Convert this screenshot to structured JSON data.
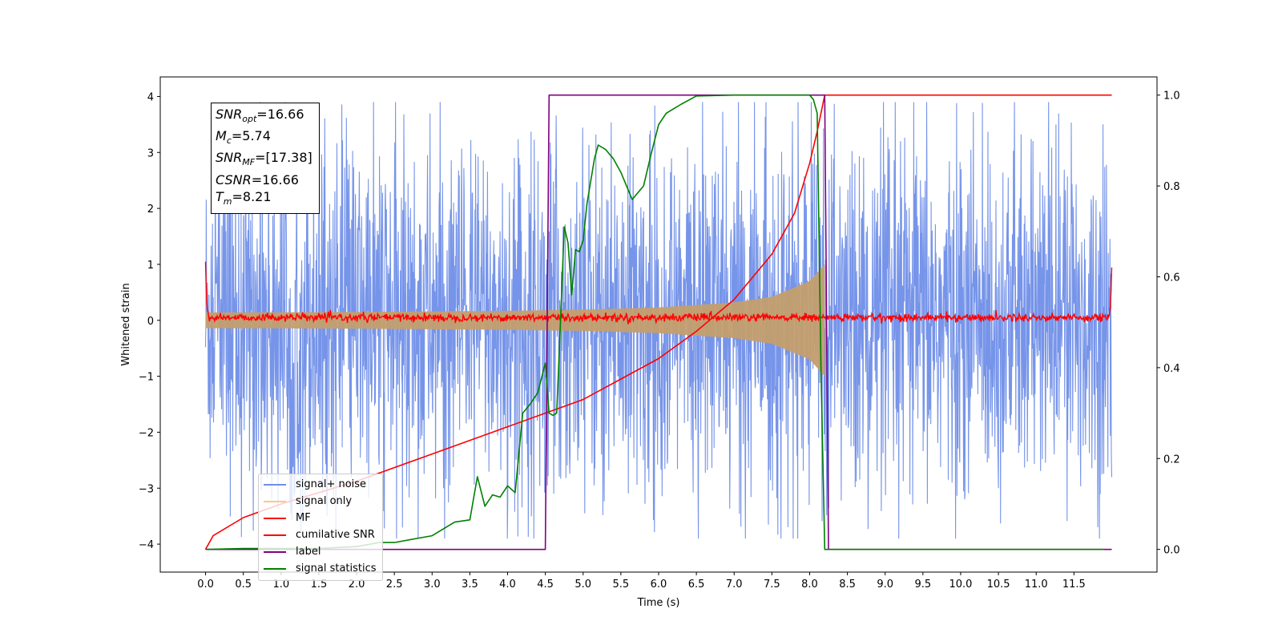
{
  "info_box": {
    "lines": [
      {
        "symbol": "SNR",
        "sub": "opt",
        "value": "=16.66"
      },
      {
        "symbol": "M",
        "sub": "c",
        "value": "=5.74"
      },
      {
        "symbol": "SNR",
        "sub": "MF",
        "value": "=[17.38]"
      },
      {
        "symbol": "CSNR",
        "sub": "",
        "value": "=16.66"
      },
      {
        "symbol": "T",
        "sub": "m",
        "value": "=8.21"
      }
    ]
  },
  "chart_data": {
    "type": "line",
    "xlabel": "Time (s)",
    "ylabel": "Whitened strain",
    "xlim": [
      -0.6,
      12.6
    ],
    "ylim": [
      -4.5,
      4.35
    ],
    "y2lim": [
      -0.05,
      1.04
    ],
    "x_ticks": [
      "0.0",
      "0.5",
      "1.0",
      "1.5",
      "2.0",
      "2.5",
      "3.0",
      "3.5",
      "4.0",
      "4.5",
      "5.0",
      "5.5",
      "6.0",
      "6.5",
      "7.0",
      "7.5",
      "8.0",
      "8.5",
      "9.0",
      "9.5",
      "10.0",
      "10.5",
      "11.0",
      "11.5"
    ],
    "y_ticks": [
      "4",
      "3",
      "2",
      "1",
      "0",
      "−1",
      "−2",
      "−3",
      "−4"
    ],
    "y2_ticks": [
      "1.0",
      "0.8",
      "0.6",
      "0.4",
      "0.2",
      "0.0"
    ],
    "legend": {
      "location": "lower-left",
      "entries": [
        {
          "label": "signal+ noise",
          "color": "#6f8ee8"
        },
        {
          "label": "signal only",
          "color": "#ffc87a"
        },
        {
          "label": "MF",
          "color": "#ff0000"
        },
        {
          "label": "cumilative SNR",
          "color": "#ff0000"
        },
        {
          "label": "label",
          "color": "#800080"
        },
        {
          "label": "signal statistics",
          "color": "#008000"
        }
      ]
    },
    "series": [
      {
        "name": "signal+ noise",
        "color": "#6f8ee8",
        "axis": "left",
        "description_points": "noise band roughly ±2.5 with spikes to ±3.5 across 0–12 s",
        "x_range": [
          0.0,
          12.0
        ],
        "typical_amplitude": 2.5,
        "peak_amplitude": 3.9
      },
      {
        "name": "signal only",
        "color": "#ffc87a",
        "axis": "left",
        "envelope": {
          "x": [
            0.0,
            2.0,
            4.0,
            5.0,
            6.0,
            7.0,
            7.5,
            8.0,
            8.2
          ],
          "amp": [
            0.14,
            0.15,
            0.17,
            0.19,
            0.23,
            0.32,
            0.42,
            0.7,
            1.0
          ]
        }
      },
      {
        "name": "MF",
        "color": "#ff0000",
        "axis": "left",
        "x_range": [
          0.0,
          12.0
        ],
        "baseline": 0.05,
        "edge_values": {
          "start": 1.0,
          "end": 0.95
        }
      },
      {
        "name": "cumilative SNR",
        "color": "#ff0000",
        "axis": "right",
        "x": [
          0.0,
          0.1,
          0.5,
          1.0,
          2.0,
          3.0,
          4.0,
          5.0,
          6.0,
          6.5,
          7.0,
          7.5,
          7.8,
          8.0,
          8.1,
          8.2,
          12.0
        ],
        "y": [
          0.0,
          0.03,
          0.07,
          0.1,
          0.15,
          0.21,
          0.27,
          0.33,
          0.42,
          0.48,
          0.55,
          0.65,
          0.74,
          0.85,
          0.92,
          1.0,
          1.0
        ]
      },
      {
        "name": "label",
        "color": "#800080",
        "axis": "right",
        "x": [
          0.0,
          4.5,
          4.55,
          8.2,
          8.25,
          12.0
        ],
        "y": [
          0.0,
          0.0,
          1.0,
          1.0,
          0.0,
          0.0
        ]
      },
      {
        "name": "signal statistics",
        "color": "#008000",
        "axis": "right",
        "x": [
          0.0,
          0.5,
          1.0,
          1.5,
          2.0,
          2.3,
          2.5,
          3.0,
          3.3,
          3.5,
          3.6,
          3.7,
          3.8,
          3.9,
          4.0,
          4.1,
          4.2,
          4.3,
          4.4,
          4.5,
          4.55,
          4.6,
          4.65,
          4.7,
          4.75,
          4.8,
          4.85,
          4.9,
          4.95,
          5.0,
          5.05,
          5.1,
          5.15,
          5.2,
          5.3,
          5.4,
          5.5,
          5.6,
          5.65,
          5.7,
          5.8,
          5.9,
          6.0,
          6.1,
          6.2,
          6.3,
          6.5,
          7.0,
          7.5,
          8.0,
          8.05,
          8.1,
          8.15,
          8.2,
          8.25,
          9.0,
          10.0,
          11.0,
          11.9
        ],
        "y": [
          0.0,
          0.002,
          0.002,
          0.002,
          0.006,
          0.015,
          0.015,
          0.03,
          0.06,
          0.065,
          0.16,
          0.095,
          0.12,
          0.115,
          0.14,
          0.125,
          0.3,
          0.32,
          0.345,
          0.41,
          0.3,
          0.295,
          0.3,
          0.5,
          0.71,
          0.675,
          0.56,
          0.66,
          0.655,
          0.68,
          0.76,
          0.81,
          0.86,
          0.89,
          0.88,
          0.86,
          0.83,
          0.79,
          0.77,
          0.78,
          0.8,
          0.87,
          0.935,
          0.96,
          0.97,
          0.98,
          0.998,
          1.0,
          1.0,
          1.0,
          0.99,
          0.96,
          0.4,
          0.0,
          0.0,
          0.0,
          0.0,
          0.0,
          0.0
        ]
      }
    ]
  }
}
